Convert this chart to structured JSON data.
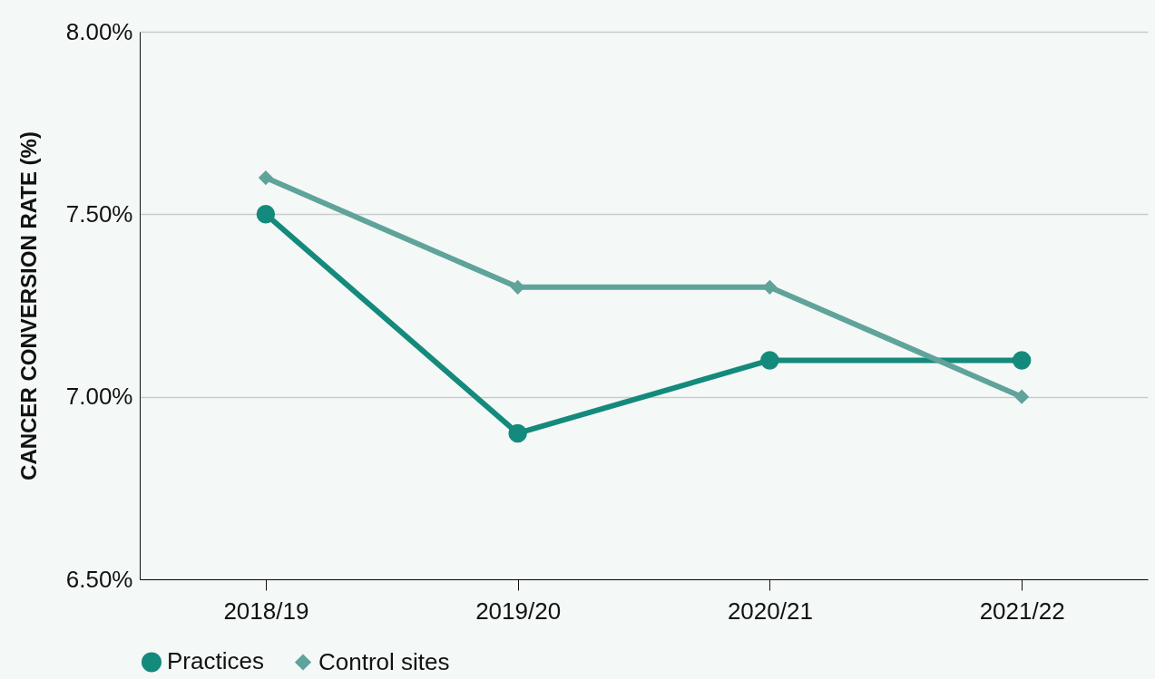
{
  "chart_data": {
    "type": "line",
    "ylabel": "CANCER CONVERSION RATE (%)",
    "categories": [
      "2018/19",
      "2019/20",
      "2020/21",
      "2021/22"
    ],
    "series": [
      {
        "name": "Practices",
        "color": "#148a7c",
        "marker": "circle",
        "values": [
          7.5,
          6.9,
          7.1,
          7.1
        ]
      },
      {
        "name": "Control sites",
        "color": "#5fa39a",
        "marker": "diamond",
        "values": [
          7.6,
          7.3,
          7.3,
          7.0
        ]
      }
    ],
    "ylim": [
      6.5,
      8.0
    ],
    "yticks": [
      {
        "value": 6.5,
        "label": "6.50%"
      },
      {
        "value": 7.0,
        "label": "7.00%"
      },
      {
        "value": 7.5,
        "label": "7.50%"
      },
      {
        "value": 8.0,
        "label": "8.00%"
      }
    ],
    "grid": "y",
    "legend": "bottom",
    "line_style": "solid"
  }
}
